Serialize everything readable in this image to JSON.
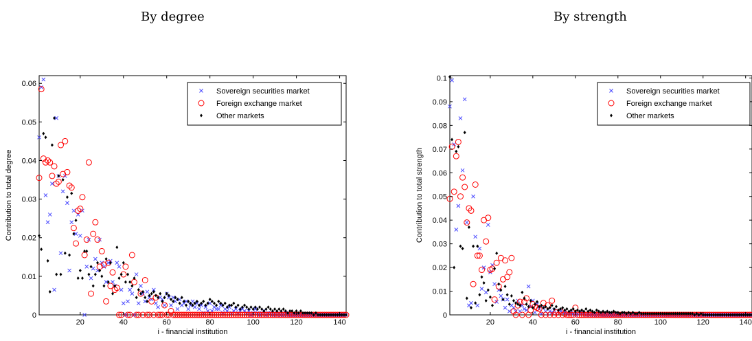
{
  "chart_data": [
    {
      "type": "scatter",
      "title": "By degree",
      "xlabel": "i - financial institution",
      "ylabel": "Contribution to total degree",
      "xlim": [
        1,
        143
      ],
      "ylim": [
        0,
        0.062
      ],
      "xticks": [
        20,
        40,
        60,
        80,
        100,
        120,
        140
      ],
      "yticks": [
        0,
        0.01,
        0.02,
        0.03,
        0.04,
        0.05,
        0.06
      ],
      "ytick_labels": [
        "0",
        "0.01",
        "0.02",
        "0.03",
        "0.04",
        "0.05",
        "0.06"
      ],
      "grid": false,
      "legend_position": "top-right",
      "series": [
        {
          "name": "Sovereign securities market",
          "marker": "x",
          "color": "#4a4aff",
          "values": [
            0.046,
            0.059,
            0.061,
            0.031,
            0.024,
            0.026,
            0.034,
            0.0065,
            0.051,
            0.036,
            0.016,
            0.032,
            0.036,
            0.029,
            0.0115,
            0.024,
            0.027,
            0.021,
            0.026,
            0.0205,
            0.027,
            0.0,
            0.0125,
            0.0195,
            0.0095,
            0.012,
            0.0145,
            0.0115,
            0.0195,
            0.0135,
            0.0125,
            0.0085,
            0.0135,
            0.014,
            0.0085,
            0.0075,
            0.0135,
            0.0125,
            0.0065,
            0.003,
            0.0,
            0.0035,
            0.0065,
            0.0055,
            0.0,
            0.0105,
            0.003,
            0.0075,
            0.0055,
            0.0035,
            0.006,
            0.0045,
            0.004,
            0.0065,
            0.003,
            0.002,
            0.0045,
            0.004,
            0.0025,
            0.0055,
            0.0045,
            0.0025,
            0.0045,
            0.0035,
            0.0015,
            0.004,
            0.0025,
            0.003,
            0.0035,
            0.0015,
            0.0025,
            0.0035,
            0.002,
            0.003,
            0.0015,
            0.0025,
            0.0005,
            0.002,
            0.001,
            0.003,
            0.001,
            0.002,
            0.0015,
            0.0015,
            0.0025,
            0.0005,
            0.0015,
            0.001,
            0.002,
            0.0005,
            0.001,
            0.0015,
            0.0005,
            0.001,
            0.0015,
            0.001,
            0.0005,
            0.001,
            0.0,
            0.0005,
            0.0015,
            0.0005,
            0.0,
            0.0005,
            0.001,
            0.0,
            0.0005,
            0.0005,
            0.0,
            0.0005,
            0.0,
            0.0005,
            0.0,
            0.0,
            0.0005,
            0.0,
            0.0,
            0.0,
            0.0,
            0.0,
            0.0,
            0.0,
            0.0,
            0.0,
            0.0,
            0.0,
            0.0,
            0.0,
            0.0,
            0.0,
            0.0,
            0.0,
            0.0,
            0.0,
            0.0,
            0.0,
            0.0,
            0.0,
            0.0,
            0.0,
            0.0,
            0.0,
            0.0
          ]
        },
        {
          "name": "Foreign exchange market",
          "marker": "o",
          "color": "#ff0000",
          "values": [
            0.0355,
            0.0585,
            0.0405,
            0.0395,
            0.04,
            0.0395,
            0.036,
            0.0385,
            0.034,
            0.0345,
            0.044,
            0.0365,
            0.045,
            0.037,
            0.0335,
            0.033,
            0.0225,
            0.0185,
            0.027,
            0.0275,
            0.0305,
            0.0155,
            0.0195,
            0.0395,
            0.0055,
            0.021,
            0.024,
            0.0195,
            0.0125,
            0.0165,
            0.013,
            0.0035,
            0.0135,
            0.0075,
            0.011,
            0.0065,
            0.007,
            0.0,
            0.0,
            0.0105,
            0.0125,
            0.0,
            0.0,
            0.0155,
            0.0085,
            0.0,
            0.0,
            0.0055,
            0.0,
            0.009,
            0.0,
            0.0,
            0.0035,
            0.0,
            0.0045,
            0.0,
            0.0,
            0.0,
            0.0025,
            0.0,
            0.0,
            0.001,
            0.0,
            0.0,
            0.0,
            0.0,
            0.0,
            0.0,
            0.0,
            0.0,
            0.0,
            0.0,
            0.0,
            0.0,
            0.0,
            0.0,
            0.0,
            0.0,
            0.0,
            0.0,
            0.0,
            0.0,
            0.0,
            0.0,
            0.0,
            0.0,
            0.0,
            0.0,
            0.0,
            0.0,
            0.0,
            0.0,
            0.0,
            0.0,
            0.0,
            0.0,
            0.0,
            0.0,
            0.0,
            0.0,
            0.0,
            0.0,
            0.0,
            0.0,
            0.0,
            0.0,
            0.0,
            0.0,
            0.0,
            0.0,
            0.0,
            0.0,
            0.0,
            0.0,
            0.0,
            0.0,
            0.0,
            0.0,
            0.0,
            0.0,
            0.0,
            0.0,
            0.0,
            0.0,
            0.0,
            0.0,
            0.0,
            0.0,
            0.0,
            0.0,
            0.0,
            0.0,
            0.0,
            0.0,
            0.0,
            0.0,
            0.0,
            0.0,
            0.0,
            0.0,
            0.0,
            0.0,
            0.0
          ]
        },
        {
          "name": "Other markets",
          "marker": "dot",
          "color": "#000000",
          "values": [
            0.0205,
            0.017,
            0.047,
            0.046,
            0.014,
            0.006,
            0.044,
            0.051,
            0.0105,
            0.036,
            0.0105,
            0.035,
            0.016,
            0.0305,
            0.0155,
            0.0315,
            0.021,
            0.0245,
            0.0095,
            0.0115,
            0.0095,
            0.0165,
            0.0165,
            0.0105,
            0.0125,
            0.0075,
            0.0105,
            0.0135,
            0.0115,
            0.01,
            0.0075,
            0.0145,
            0.0085,
            0.0135,
            0.0055,
            0.0075,
            0.0175,
            0.0095,
            0.0105,
            0.0135,
            0.0085,
            0.0105,
            0.0085,
            0.0075,
            0.0095,
            0.0045,
            0.0065,
            0.0055,
            0.006,
            0.0045,
            0.0035,
            0.005,
            0.0055,
            0.006,
            0.005,
            0.0045,
            0.0055,
            0.0035,
            0.0045,
            0.0055,
            0.005,
            0.004,
            0.0035,
            0.0045,
            0.004,
            0.003,
            0.0045,
            0.0035,
            0.0025,
            0.0035,
            0.003,
            0.0025,
            0.003,
            0.0035,
            0.0025,
            0.003,
            0.0035,
            0.0025,
            0.003,
            0.004,
            0.0035,
            0.003,
            0.0025,
            0.0035,
            0.003,
            0.0025,
            0.003,
            0.002,
            0.0025,
            0.0025,
            0.003,
            0.002,
            0.0025,
            0.0015,
            0.002,
            0.0025,
            0.002,
            0.0015,
            0.002,
            0.0015,
            0.002,
            0.0015,
            0.002,
            0.0015,
            0.001,
            0.0015,
            0.002,
            0.0015,
            0.001,
            0.0015,
            0.001,
            0.0015,
            0.001,
            0.0015,
            0.001,
            0.0005,
            0.001,
            0.001,
            0.0005,
            0.001,
            0.0005,
            0.001,
            0.0005,
            0.0005,
            0.0005,
            0.0005,
            0.0005,
            0.0,
            0.0005,
            0.0,
            0.0,
            0.0,
            0.0,
            0.0,
            0.0,
            0.0,
            0.0,
            0.0,
            0.0,
            0.0,
            0.0,
            0.0,
            0.0
          ]
        }
      ]
    },
    {
      "type": "scatter",
      "title": "By strength",
      "xlabel": "i - financial institution",
      "ylabel": "Contribution to total strength",
      "xlim": [
        1,
        143
      ],
      "ylim": [
        0,
        0.101
      ],
      "xticks": [
        20,
        40,
        60,
        80,
        100,
        120,
        140
      ],
      "yticks": [
        0,
        0.01,
        0.02,
        0.03,
        0.04,
        0.05,
        0.06,
        0.07,
        0.08,
        0.09,
        0.1
      ],
      "ytick_labels": [
        "0",
        "0.01",
        "0.02",
        "0.03",
        "0.04",
        "0.05",
        "0.06",
        "0.07",
        "0.08",
        "0.09",
        "0.1"
      ],
      "grid": false,
      "legend_position": "top-right",
      "series": [
        {
          "name": "Sovereign securities market",
          "marker": "x",
          "color": "#4a4aff",
          "values": [
            0.088,
            0.099,
            0.072,
            0.036,
            0.046,
            0.083,
            0.061,
            0.091,
            0.039,
            0.004,
            0.005,
            0.05,
            0.033,
            0.004,
            0.028,
            0.011,
            0.02,
            0.0095,
            0.038,
            0.018,
            0.021,
            0.013,
            0.0055,
            0.0105,
            0.008,
            0.0065,
            0.003,
            0.0065,
            0.0015,
            0.004,
            0.003,
            0.0015,
            0.006,
            0.0015,
            0.004,
            0.0025,
            0.002,
            0.012,
            0.0035,
            0.006,
            0.001,
            0.0045,
            0.0025,
            0.0005,
            0.003,
            0.0015,
            0.0005,
            0.0015,
            0.001,
            0.002,
            0.0005,
            0.0015,
            0.0015,
            0.001,
            0.001,
            0.0005,
            0.0005,
            0.001,
            0.0005,
            0.0,
            0.0005,
            0.0005,
            0.001,
            0.0005,
            0.0,
            0.0005,
            0.0,
            0.0005,
            0.0,
            0.0,
            0.0005,
            0.0,
            0.0,
            0.0,
            0.0,
            0.0,
            0.0,
            0.0,
            0.0,
            0.0,
            0.0,
            0.0,
            0.0,
            0.0,
            0.0,
            0.0,
            0.0,
            0.0,
            0.0,
            0.0,
            0.0,
            0.0,
            0.0,
            0.0,
            0.0,
            0.0,
            0.0,
            0.0,
            0.0,
            0.0,
            0.0,
            0.0,
            0.0,
            0.0,
            0.0,
            0.0,
            0.0,
            0.0,
            0.0,
            0.0,
            0.0,
            0.0,
            0.0,
            0.0,
            0.0,
            0.0,
            0.0,
            0.0,
            0.0,
            0.0,
            0.0,
            0.0,
            0.0,
            0.0,
            0.0,
            0.0,
            0.0,
            0.0,
            0.0,
            0.0,
            0.0,
            0.0,
            0.0,
            0.0,
            0.0,
            0.0,
            0.0,
            0.0,
            0.0,
            0.0,
            0.0,
            0.0,
            0.0
          ]
        },
        {
          "name": "Foreign exchange market",
          "marker": "o",
          "color": "#ff0000",
          "values": [
            0.049,
            0.071,
            0.052,
            0.067,
            0.073,
            0.05,
            0.058,
            0.054,
            0.039,
            0.045,
            0.044,
            0.013,
            0.055,
            0.025,
            0.025,
            0.019,
            0.04,
            0.031,
            0.041,
            0.019,
            0.0195,
            0.0065,
            0.022,
            0.012,
            0.024,
            0.015,
            0.023,
            0.016,
            0.018,
            0.024,
            0.0015,
            0.0,
            0.004,
            0.0055,
            0.0,
            0.0055,
            0.007,
            0.0,
            0.002,
            0.0045,
            0.0035,
            0.003,
            0.0025,
            0.0,
            0.005,
            0.0,
            0.004,
            0.0,
            0.006,
            0.0,
            0.001,
            0.0,
            0.0015,
            0.0,
            0.0005,
            0.0,
            0.0,
            0.0,
            0.0,
            0.003,
            0.0,
            0.0,
            0.0,
            0.0,
            0.0,
            0.0,
            0.0,
            0.0,
            0.0,
            0.0,
            0.0,
            0.0,
            0.0,
            0.0,
            0.0,
            0.0,
            0.0,
            0.0,
            0.0,
            0.0,
            0.0,
            0.0,
            0.0,
            0.0,
            0.0,
            0.0,
            0.0,
            0.0,
            0.0,
            0.0,
            0.0,
            0.0,
            0.0,
            0.0,
            0.0,
            0.0,
            0.0,
            0.0,
            0.0,
            0.0,
            0.0,
            0.0,
            0.0,
            0.0,
            0.0,
            0.0,
            0.0,
            0.0,
            0.0,
            0.0,
            0.0,
            0.0,
            0.0,
            0.0,
            0.0,
            0.0,
            0.0,
            0.0,
            0.0,
            0.0,
            0.0,
            0.0,
            0.0,
            0.0,
            0.0,
            0.0,
            0.0,
            0.0,
            0.0,
            0.0,
            0.0,
            0.0,
            0.0,
            0.0,
            0.0,
            0.0,
            0.0,
            0.0,
            0.0,
            0.0,
            0.0,
            0.0,
            0.0
          ]
        },
        {
          "name": "Other markets",
          "marker": "dot",
          "color": "#000000",
          "values": [
            0.1005,
            0.074,
            0.02,
            0.069,
            0.071,
            0.029,
            0.028,
            0.077,
            0.007,
            0.037,
            0.003,
            0.029,
            0.005,
            0.029,
            0.0085,
            0.016,
            0.0135,
            0.006,
            0.0105,
            0.0075,
            0.004,
            0.0195,
            0.026,
            0.013,
            0.0105,
            0.0065,
            0.012,
            0.0085,
            0.0045,
            0.008,
            0.006,
            0.005,
            0.0045,
            0.004,
            0.0095,
            0.007,
            0.0045,
            0.0035,
            0.006,
            0.003,
            0.0045,
            0.0055,
            0.0035,
            0.004,
            0.003,
            0.0035,
            0.0025,
            0.003,
            0.004,
            0.0025,
            0.0035,
            0.002,
            0.0025,
            0.003,
            0.002,
            0.0025,
            0.0015,
            0.002,
            0.0025,
            0.0015,
            0.002,
            0.0015,
            0.002,
            0.0015,
            0.0025,
            0.0015,
            0.002,
            0.0015,
            0.001,
            0.002,
            0.0015,
            0.001,
            0.0015,
            0.001,
            0.0015,
            0.001,
            0.001,
            0.0015,
            0.001,
            0.001,
            0.0005,
            0.001,
            0.001,
            0.0005,
            0.001,
            0.0005,
            0.001,
            0.0005,
            0.0005,
            0.001,
            0.0005,
            0.0005,
            0.0005,
            0.0005,
            0.0005,
            0.0005,
            0.0005,
            0.0005,
            0.0005,
            0.0005,
            0.0005,
            0.0005,
            0.0005,
            0.0005,
            0.0005,
            0.0005,
            0.0005,
            0.0005,
            0.0005,
            0.0005,
            0.0005,
            0.0005,
            0.0005,
            0.0005,
            0.0005,
            0.0,
            0.0005,
            0.0,
            0.0005,
            0.0,
            0.0,
            0.0,
            0.0,
            0.0,
            0.0,
            0.0,
            0.0,
            0.0,
            0.0,
            0.0,
            0.0,
            0.0,
            0.0,
            0.0,
            0.0,
            0.0,
            0.0,
            0.0,
            0.0,
            0.0,
            0.0,
            0.0,
            0.0
          ]
        }
      ]
    }
  ]
}
